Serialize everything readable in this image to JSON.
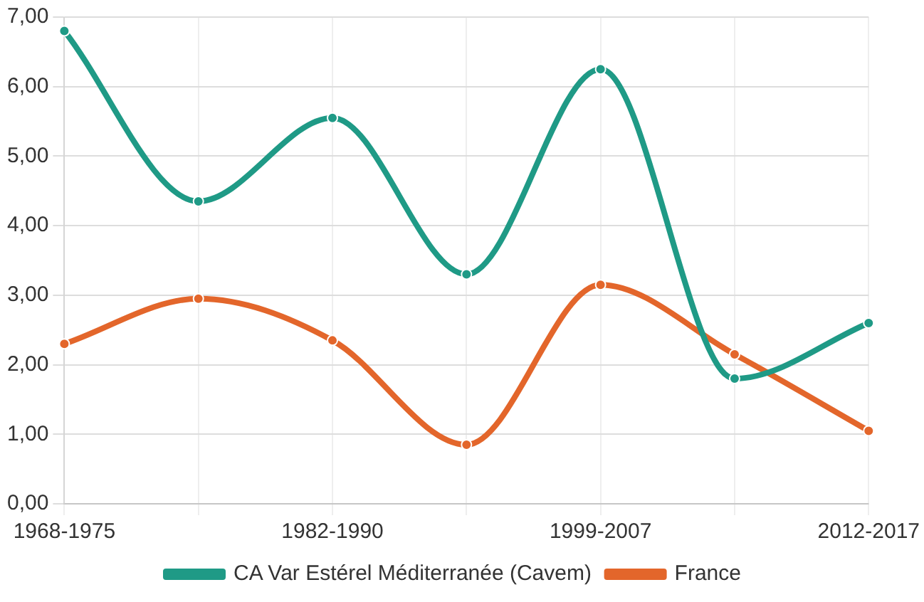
{
  "chart_data": {
    "type": "line",
    "categories": [
      "1968-1975",
      null,
      "1982-1990",
      null,
      "1999-2007",
      null,
      "2012-2017"
    ],
    "series": [
      {
        "name": "CA Var Estérel Méditerranée (Cavem)",
        "color": "#1f9a86",
        "values": [
          6.8,
          4.35,
          5.55,
          3.3,
          6.25,
          1.8,
          2.6
        ]
      },
      {
        "name": "France",
        "color": "#e3662b",
        "values": [
          2.3,
          2.95,
          2.35,
          0.85,
          3.15,
          2.15,
          1.05
        ]
      }
    ],
    "ylim": [
      0,
      7
    ],
    "yticks": [
      {
        "value": 0,
        "label": "0,00"
      },
      {
        "value": 1,
        "label": "1,00"
      },
      {
        "value": 2,
        "label": "2,00"
      },
      {
        "value": 3,
        "label": "3,00"
      },
      {
        "value": 4,
        "label": "4,00"
      },
      {
        "value": 5,
        "label": "5,00"
      },
      {
        "value": 6,
        "label": "6,00"
      },
      {
        "value": 7,
        "label": "7,00"
      }
    ],
    "grid": true,
    "legend": "bottom",
    "marker": "circle",
    "line_style": "solid"
  }
}
